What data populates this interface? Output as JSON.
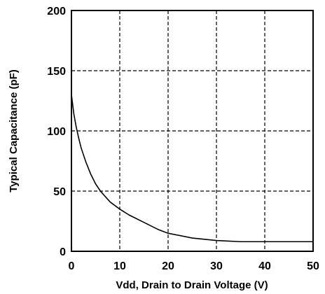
{
  "chart_data": {
    "type": "line",
    "title": "",
    "xlabel": "Vdd, Drain to Drain Voltage (V)",
    "ylabel": "Typical Capacitance (pF)",
    "xlim": [
      0,
      50
    ],
    "ylim": [
      0,
      200
    ],
    "x_ticks": [
      0,
      10,
      20,
      30,
      40,
      50
    ],
    "y_ticks": [
      0,
      50,
      100,
      150,
      200
    ],
    "x_tick_labels": [
      "0",
      "10",
      "20",
      "30",
      "40",
      "50"
    ],
    "y_tick_labels": [
      "0",
      "50",
      "100",
      "150",
      "200"
    ],
    "grid": true,
    "grid_style": "dashed",
    "line_color": "#000000",
    "series": [
      {
        "x": [
          0,
          0.5,
          1,
          1.5,
          2,
          3,
          4,
          5,
          6,
          8,
          10,
          12,
          15,
          18,
          20,
          25,
          30,
          35,
          40,
          45,
          50
        ],
        "y": [
          130,
          114,
          103,
          94,
          86,
          74,
          64,
          56,
          50,
          41,
          35,
          30,
          24,
          18,
          15,
          11,
          9,
          8,
          8,
          8,
          8
        ]
      }
    ]
  }
}
